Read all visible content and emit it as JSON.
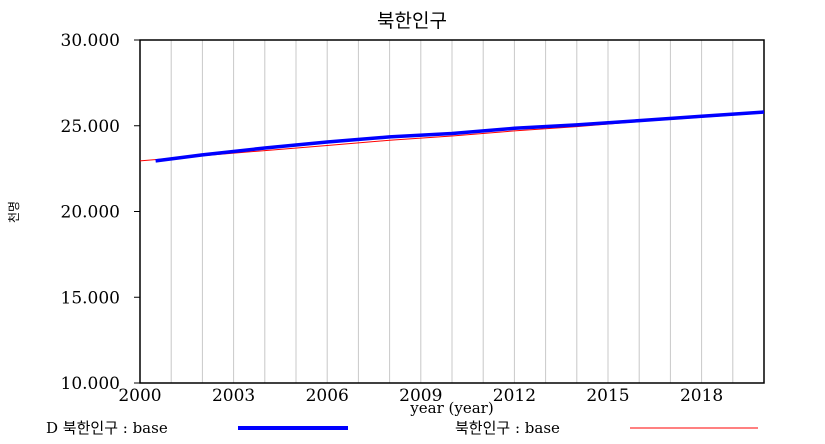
{
  "chart_data": {
    "type": "line",
    "title": "북한인구",
    "xlabel": "year (year)",
    "ylabel": "천명",
    "xlim": [
      2000,
      2020
    ],
    "ylim": [
      10000,
      30000
    ],
    "x_ticks": [
      "2000",
      "2003",
      "2006",
      "2009",
      "2012",
      "2015",
      "2018"
    ],
    "y_ticks": [
      "30.000",
      "25.000",
      "20.000",
      "15.000",
      "10.000"
    ],
    "grid": "vertical",
    "legend_position": "bottom",
    "series": [
      {
        "name": "D 북한인구 : base",
        "color": "#0000ff",
        "x": [
          2000.5,
          2002,
          2004,
          2006,
          2008,
          2010,
          2012,
          2014,
          2016,
          2018,
          2020
        ],
        "y": [
          22950,
          23300,
          23700,
          24050,
          24350,
          24550,
          24850,
          25050,
          25300,
          25550,
          25800
        ]
      },
      {
        "name": "북한인구 : base",
        "color": "#ff0000",
        "x": [
          2000,
          2002,
          2004,
          2006,
          2008,
          2010,
          2012,
          2014,
          2016,
          2018,
          2020
        ],
        "y": [
          22950,
          23250,
          23550,
          23850,
          24150,
          24400,
          24700,
          24950,
          25250,
          25500,
          25750
        ]
      }
    ]
  }
}
